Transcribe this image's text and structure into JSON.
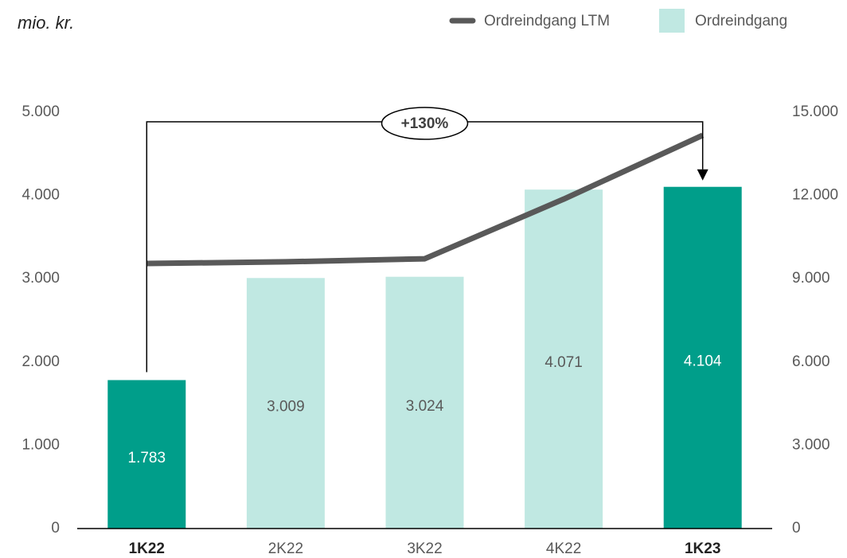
{
  "chart_data": {
    "type": "bar",
    "unit_label": "mio. kr.",
    "annotation": "+130%",
    "categories": [
      "1K22",
      "2K22",
      "3K22",
      "4K22",
      "1K23"
    ],
    "highlight": [
      0,
      4
    ],
    "series": [
      {
        "name": "Ordreindgang LTM",
        "type": "line",
        "axis": "y2",
        "color": "#595959",
        "values": [
          9550,
          9610,
          9720,
          11870,
          14170
        ]
      },
      {
        "name": "Ordreindgang",
        "type": "bar",
        "color": "#c0e8e2",
        "highlight_color": "#009e8a",
        "values": [
          1783,
          3009,
          3024,
          4071,
          4104
        ],
        "value_labels": [
          "1.783",
          "3.009",
          "3.024",
          "4.071",
          "4.104"
        ]
      }
    ],
    "ylim": [
      0,
      5000
    ],
    "yticks": [
      0,
      {
        "value": 1000,
        "label": "1.000"
      },
      {
        "value": 2000,
        "label": "2.000"
      },
      {
        "value": 3000,
        "label": "3.000"
      },
      {
        "value": 4000,
        "label": "4.000"
      },
      {
        "value": 5000,
        "label": "5.000"
      }
    ],
    "y2lim": [
      0,
      15000
    ],
    "y2ticks": [
      0,
      {
        "value": 3000,
        "label": "3.000"
      },
      {
        "value": 6000,
        "label": "6.000"
      },
      {
        "value": 9000,
        "label": "9.000"
      },
      {
        "value": 12000,
        "label": "12.000"
      },
      {
        "value": 15000,
        "label": "15.000"
      }
    ],
    "legend": "top-right",
    "grid": false
  }
}
